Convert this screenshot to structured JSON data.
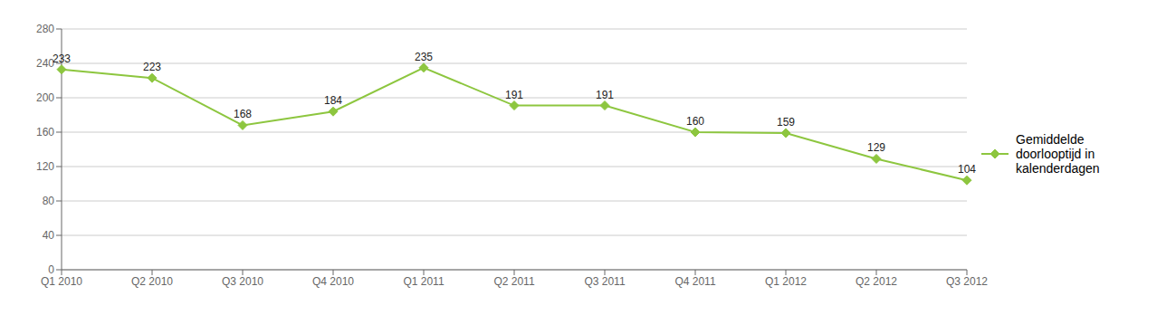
{
  "chart_data": {
    "type": "line",
    "categories": [
      "Q1 2010",
      "Q2 2010",
      "Q3 2010",
      "Q4 2010",
      "Q1 2011",
      "Q2 2011",
      "Q3 2011",
      "Q4 2011",
      "Q1 2012",
      "Q2 2012",
      "Q3 2012"
    ],
    "series": [
      {
        "name": "Gemiddelde\ndoorlooptijd in\nkalenderdagen",
        "color": "#8DC63F",
        "marker": "diamond",
        "values": [
          233,
          223,
          168,
          184,
          235,
          191,
          191,
          160,
          159,
          129,
          104
        ]
      }
    ],
    "ylim": [
      0,
      280
    ],
    "yticks": [
      0,
      40,
      80,
      120,
      160,
      200,
      240,
      280
    ],
    "grid": true,
    "data_labels": true,
    "legend": "right"
  }
}
